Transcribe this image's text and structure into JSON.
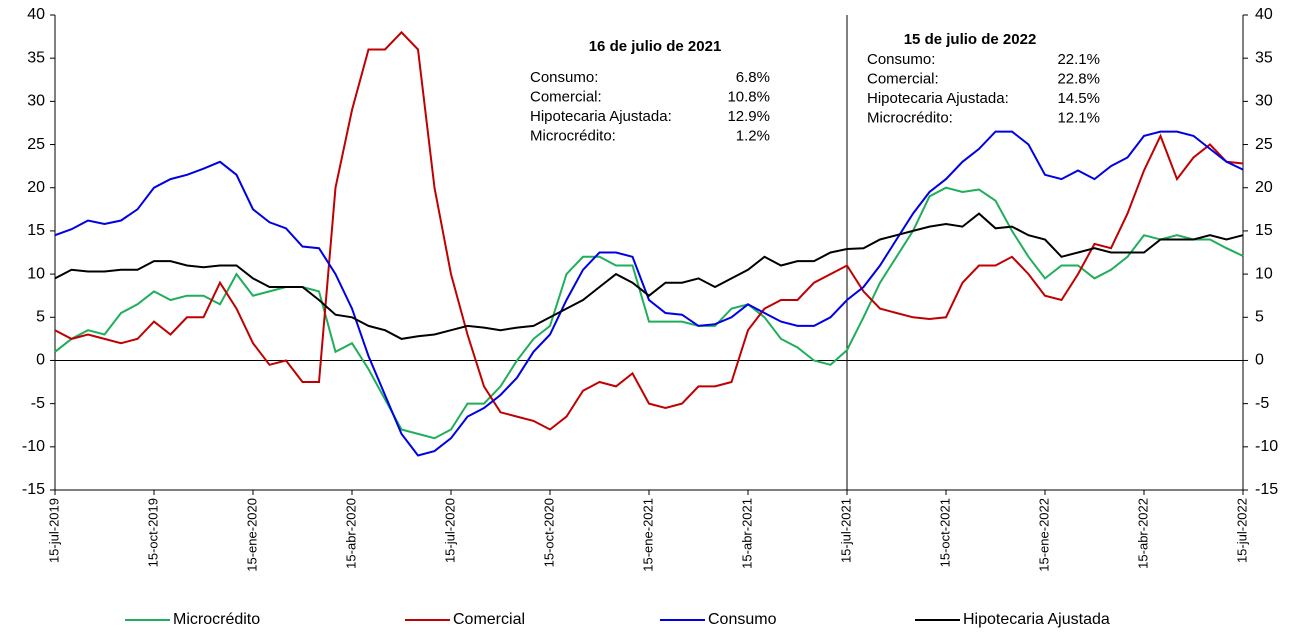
{
  "chart_data": {
    "type": "line",
    "categories": [
      "15-jul-2019",
      null,
      null,
      null,
      null,
      null,
      "15-oct-2019",
      null,
      null,
      null,
      null,
      null,
      "15-ene-2020",
      null,
      null,
      null,
      null,
      null,
      "15-abr-2020",
      null,
      null,
      null,
      null,
      null,
      "15-jul-2020",
      null,
      null,
      null,
      null,
      null,
      "15-oct-2020",
      null,
      null,
      null,
      null,
      null,
      "15-ene-2021",
      null,
      null,
      null,
      null,
      null,
      "15-abr-2021",
      null,
      null,
      null,
      null,
      null,
      "15-jul-2021",
      null,
      null,
      null,
      null,
      null,
      "15-oct-2021",
      null,
      null,
      null,
      null,
      null,
      "15-ene-2022",
      null,
      null,
      null,
      null,
      null,
      "15-abr-2022",
      null,
      null,
      null,
      null,
      null,
      "15-jul-2022"
    ],
    "series": [
      {
        "name": "Microcrédito",
        "color": "#1fae5a",
        "values": [
          1,
          2.5,
          3.5,
          3,
          5.5,
          6.5,
          8,
          7,
          7.5,
          7.5,
          6.5,
          10,
          7.5,
          8,
          8.5,
          8.5,
          8,
          1,
          2,
          -1,
          -4.5,
          -8,
          -8.5,
          -9,
          -8,
          -5,
          -5,
          -3,
          0,
          2.5,
          4,
          10,
          12,
          12,
          11,
          11,
          4.5,
          4.5,
          4.5,
          4,
          4,
          6,
          6.5,
          5,
          2.5,
          1.5,
          0,
          -0.5,
          1.2,
          5,
          9,
          12,
          15,
          19,
          20,
          19.5,
          19.8,
          18.5,
          15,
          12,
          9.5,
          11,
          11,
          9.5,
          10.5,
          12,
          14.5,
          14,
          14.5,
          14,
          14,
          13,
          12.1
        ]
      },
      {
        "name": "Comercial",
        "color": "#c00000",
        "values": [
          3.5,
          2.5,
          3,
          2.5,
          2,
          2.5,
          4.5,
          3,
          5,
          5,
          9,
          6,
          2,
          -0.5,
          0,
          -2.5,
          -2.5,
          20,
          29,
          36,
          36,
          38,
          36,
          20,
          10,
          3,
          -3,
          -6,
          -6.5,
          -7,
          -8,
          -6.5,
          -3.5,
          -2.5,
          -3,
          -1.5,
          -5,
          -5.5,
          -5,
          -3,
          -3,
          -2.5,
          3.5,
          6,
          7,
          7,
          9,
          10,
          11,
          8,
          6,
          5.5,
          5,
          4.8,
          5,
          9,
          11,
          11,
          12,
          10,
          7.5,
          7,
          10,
          13.5,
          13,
          17,
          22,
          26,
          21,
          23.5,
          25,
          23,
          22.8
        ]
      },
      {
        "name": "Consumo",
        "color": "#0000e6",
        "values": [
          14.5,
          15.2,
          16.2,
          15.8,
          16.2,
          17.5,
          20,
          21,
          21.5,
          22.2,
          23,
          21.5,
          17.5,
          16,
          15.3,
          13.2,
          13,
          10,
          6,
          0.5,
          -4,
          -8.5,
          -11,
          -10.5,
          -9,
          -6.5,
          -5.5,
          -4,
          -2,
          1,
          3,
          7,
          10.5,
          12.5,
          12.5,
          12,
          7,
          5.5,
          5.3,
          4,
          4.2,
          5,
          6.5,
          5.5,
          4.5,
          4,
          4,
          5,
          7,
          8.5,
          11,
          14,
          17,
          19.5,
          21,
          23,
          24.5,
          26.5,
          26.5,
          25,
          21.5,
          21,
          22,
          21,
          22.5,
          23.5,
          26,
          26.5,
          26.5,
          26,
          24.5,
          23,
          22.1
        ]
      },
      {
        "name": "Hipotecaria Ajustada",
        "color": "#000000",
        "values": [
          9.5,
          10.5,
          10.3,
          10.3,
          10.5,
          10.5,
          11.5,
          11.5,
          11,
          10.8,
          11,
          11,
          9.5,
          8.5,
          8.5,
          8.5,
          7,
          5.3,
          5,
          4,
          3.5,
          2.5,
          2.8,
          3,
          3.5,
          4,
          3.8,
          3.5,
          3.8,
          4,
          5,
          6,
          7,
          8.5,
          10,
          9,
          7.5,
          9,
          9,
          9.5,
          8.5,
          9.5,
          10.5,
          12,
          11,
          11.5,
          11.5,
          12.5,
          12.9,
          13,
          14,
          14.5,
          15,
          15.5,
          15.8,
          15.5,
          17,
          15.3,
          15.5,
          14.5,
          14,
          12,
          12.5,
          13,
          12.5,
          12.5,
          12.5,
          14,
          14,
          14,
          14.5,
          14,
          14.5
        ]
      }
    ],
    "ylim": [
      -15,
      40
    ],
    "yticks": [
      -15,
      -10,
      -5,
      0,
      5,
      10,
      15,
      20,
      25,
      30,
      35,
      40
    ],
    "y2lim": [
      -15,
      40
    ],
    "y2ticks": [
      -15,
      -10,
      -5,
      0,
      5,
      10,
      15,
      20,
      25,
      30,
      35,
      40
    ],
    "vline_at": "15-jul-2021",
    "annotations": [
      {
        "title": "16 de julio de 2021",
        "rows": [
          [
            "Consumo:",
            "6.8%"
          ],
          [
            "Comercial:",
            "10.8%"
          ],
          [
            "Hipotecaria Ajustada:",
            "12.9%"
          ],
          [
            "Microcrédito:",
            "1.2%"
          ]
        ]
      },
      {
        "title": "15 de julio de 2022",
        "rows": [
          [
            "Consumo:",
            "22.1%"
          ],
          [
            "Comercial:",
            "22.8%"
          ],
          [
            "Hipotecaria Ajustada:",
            "14.5%"
          ],
          [
            "Microcrédito:",
            "12.1%"
          ]
        ]
      }
    ]
  }
}
